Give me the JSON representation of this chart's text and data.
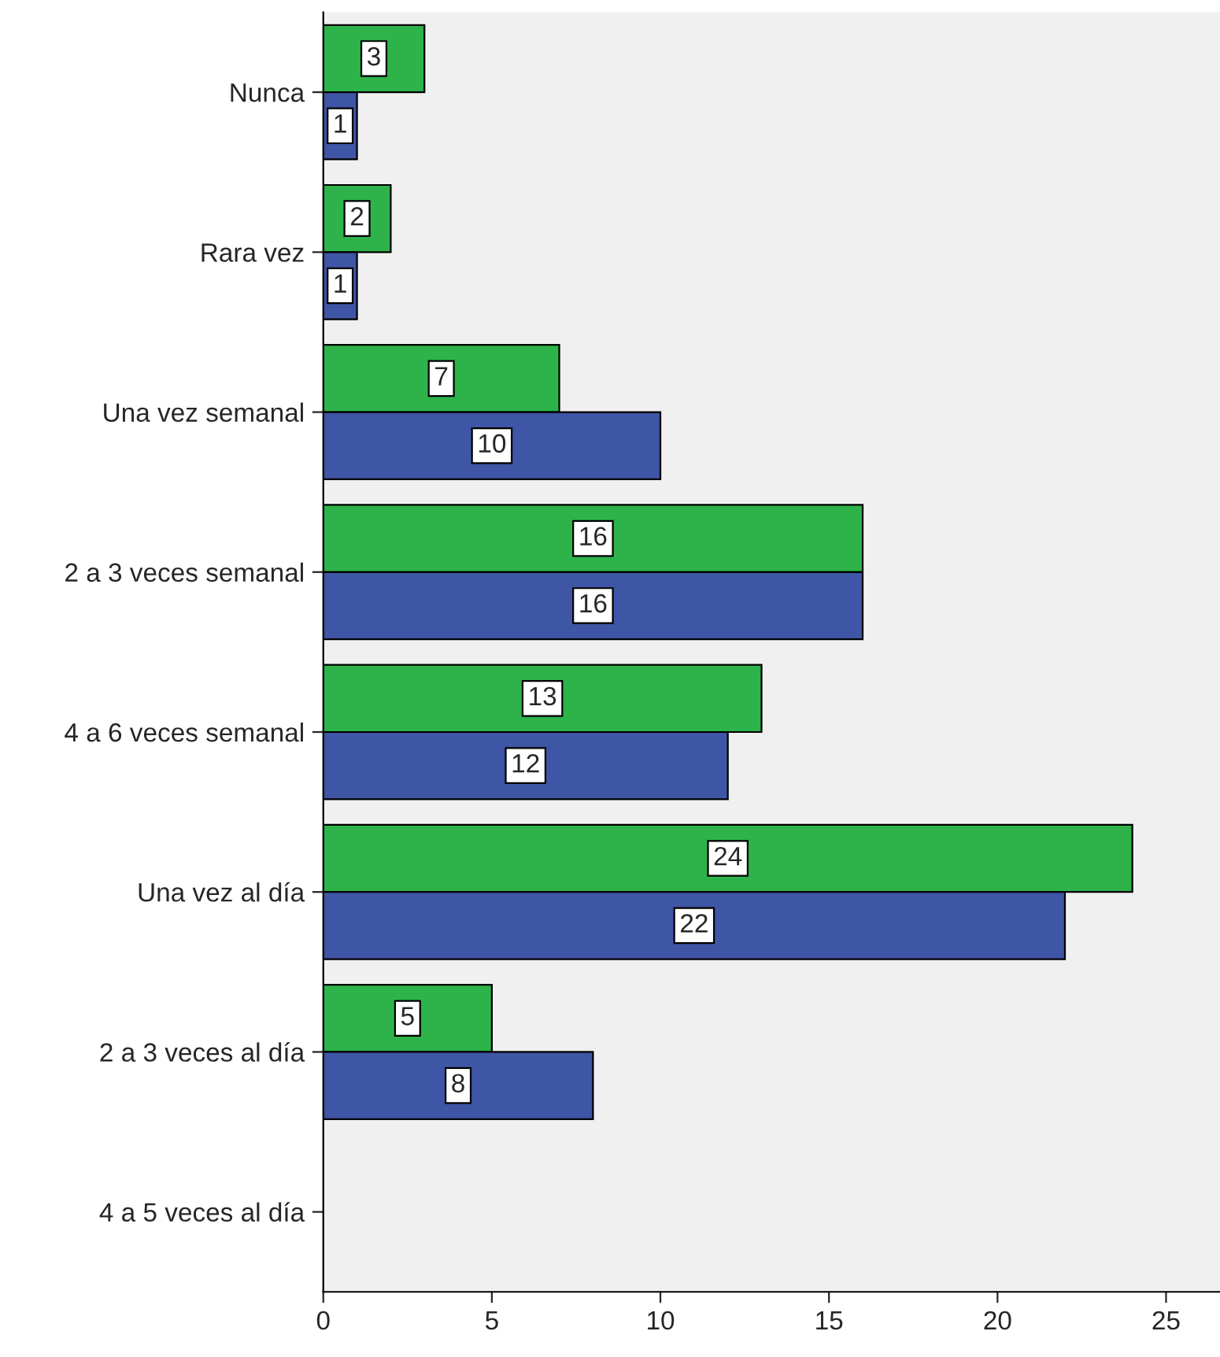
{
  "chart_data": {
    "type": "bar",
    "orientation": "horizontal",
    "categories": [
      "Nunca",
      "Rara vez",
      "Una vez semanal",
      "2 a 3 veces semanal",
      "4 a 6 veces semanal",
      "Una vez al día",
      "2 a 3 veces al día",
      "4 a 5 veces al día"
    ],
    "series": [
      {
        "color": "#2db34a",
        "values": [
          3,
          2,
          7,
          16,
          13,
          24,
          5,
          null
        ]
      },
      {
        "color": "#3f55a5",
        "values": [
          1,
          1,
          10,
          16,
          12,
          22,
          8,
          null
        ]
      }
    ],
    "xlim": [
      0,
      26.6
    ],
    "xticks": [
      0,
      5,
      10,
      15,
      20,
      25
    ],
    "grid": false,
    "legend": false,
    "data_labels": true
  }
}
